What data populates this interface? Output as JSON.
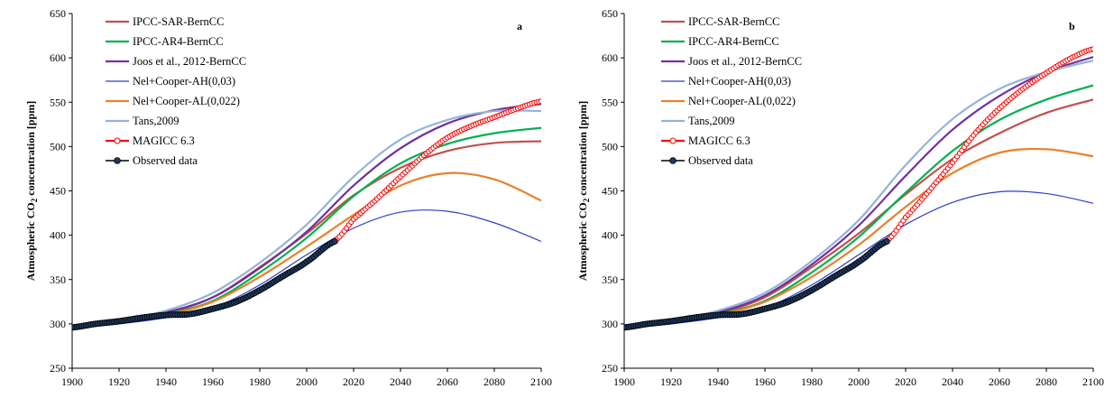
{
  "chart_data": [
    {
      "type": "line",
      "panel_label": "a",
      "ylabel": "Atmospheric CO",
      "ylabel_sub": "2",
      "ylabel_rest": " concentration [ppm]",
      "xlim": [
        1900,
        2100
      ],
      "ylim": [
        250,
        650
      ],
      "xticks": [
        "1900",
        "1920",
        "1940",
        "1960",
        "1980",
        "2000",
        "2020",
        "2040",
        "2060",
        "2080",
        "2100"
      ],
      "yticks": [
        "250",
        "300",
        "350",
        "400",
        "450",
        "500",
        "550",
        "600",
        "650"
      ],
      "series": [
        {
          "name": "IPCC-SAR-BernCC",
          "color": "#c0504d",
          "x": [
            1900,
            1920,
            1940,
            1960,
            1980,
            2000,
            2020,
            2040,
            2060,
            2080,
            2100
          ],
          "values": [
            296,
            302,
            312,
            330,
            364,
            402,
            445,
            476,
            495,
            504,
            506
          ]
        },
        {
          "name": "IPCC-AR4-BernCC",
          "color": "#00b050",
          "x": [
            1900,
            1920,
            1940,
            1960,
            1980,
            2000,
            2020,
            2040,
            2060,
            2080,
            2100
          ],
          "values": [
            296,
            302,
            311,
            326,
            358,
            397,
            444,
            481,
            503,
            515,
            521
          ]
        },
        {
          "name": "Joos et al., 2012-BernCC",
          "color": "#7030a0",
          "x": [
            1900,
            1920,
            1940,
            1960,
            1980,
            2000,
            2020,
            2040,
            2060,
            2080,
            2100
          ],
          "values": [
            296,
            303,
            313,
            330,
            363,
            404,
            456,
            498,
            526,
            541,
            548
          ]
        },
        {
          "name": "Nel+Cooper-AH(0,03)",
          "color": "#2e3ec7",
          "x": [
            1900,
            1920,
            1940,
            1960,
            1980,
            2000,
            2020,
            2040,
            2060,
            2080,
            2100
          ],
          "values": [
            295,
            300,
            307,
            318,
            344,
            378,
            408,
            426,
            427,
            414,
            393
          ]
        },
        {
          "name": "Nel+Cooper-AL(0,022)",
          "color": "#e9812a",
          "x": [
            1900,
            1920,
            1940,
            1960,
            1980,
            2000,
            2020,
            2040,
            2060,
            2080,
            2100
          ],
          "values": [
            296,
            302,
            310,
            325,
            353,
            387,
            423,
            456,
            470,
            463,
            439
          ]
        },
        {
          "name": "Tans,2009",
          "color": "#95b3d7",
          "x": [
            1900,
            1920,
            1940,
            1960,
            1980,
            2000,
            2020,
            2040,
            2060,
            2080,
            2100
          ],
          "values": [
            297,
            304,
            315,
            335,
            369,
            412,
            466,
            508,
            530,
            540,
            540
          ]
        },
        {
          "name": "MAGICC 6.3",
          "color": "#ff0000",
          "x": [
            2012,
            2020,
            2030,
            2040,
            2050,
            2060,
            2070,
            2080,
            2090,
            2100
          ],
          "values": [
            394,
            418,
            441,
            466,
            490,
            510,
            523,
            533,
            543,
            551
          ]
        },
        {
          "name": "Observed data",
          "color": "#000000",
          "x": [
            1900,
            1910,
            1920,
            1930,
            1940,
            1950,
            1960,
            1970,
            1980,
            1990,
            2000,
            2012
          ],
          "values": [
            296,
            300,
            303,
            307,
            310,
            311,
            317,
            325,
            338,
            354,
            370,
            393
          ]
        }
      ]
    },
    {
      "type": "line",
      "panel_label": "b",
      "ylabel": "Atmospheric CO",
      "ylabel_sub": "2",
      "ylabel_rest": " concentration [ppm]",
      "xlim": [
        1900,
        2100
      ],
      "ylim": [
        250,
        650
      ],
      "xticks": [
        "1900",
        "1920",
        "1940",
        "1960",
        "1980",
        "2000",
        "2020",
        "2040",
        "2060",
        "2080",
        "2100"
      ],
      "yticks": [
        "250",
        "300",
        "350",
        "400",
        "450",
        "500",
        "550",
        "600",
        "650"
      ],
      "series": [
        {
          "name": "IPCC-SAR-BernCC",
          "color": "#c0504d",
          "x": [
            1900,
            1920,
            1940,
            1960,
            1980,
            2000,
            2020,
            2040,
            2060,
            2080,
            2100
          ],
          "values": [
            296,
            302,
            312,
            330,
            364,
            402,
            446,
            486,
            515,
            538,
            553
          ]
        },
        {
          "name": "IPCC-AR4-BernCC",
          "color": "#00b050",
          "x": [
            1900,
            1920,
            1940,
            1960,
            1980,
            2000,
            2020,
            2040,
            2060,
            2080,
            2100
          ],
          "values": [
            296,
            302,
            311,
            326,
            358,
            398,
            448,
            495,
            530,
            553,
            569
          ]
        },
        {
          "name": "Joos et al., 2012-BernCC",
          "color": "#7030a0",
          "x": [
            1900,
            1920,
            1940,
            1960,
            1980,
            2000,
            2020,
            2040,
            2060,
            2080,
            2100
          ],
          "values": [
            296,
            303,
            313,
            332,
            367,
            411,
            467,
            519,
            557,
            584,
            601
          ]
        },
        {
          "name": "Nel+Cooper-AH(0,03)",
          "color": "#2e3ec7",
          "x": [
            1900,
            1920,
            1940,
            1960,
            1980,
            2000,
            2020,
            2040,
            2060,
            2080,
            2100
          ],
          "values": [
            295,
            300,
            307,
            318,
            344,
            378,
            412,
            437,
            449,
            447,
            436
          ]
        },
        {
          "name": "Nel+Cooper-AL(0,022)",
          "color": "#e9812a",
          "x": [
            1900,
            1920,
            1940,
            1960,
            1980,
            2000,
            2020,
            2040,
            2060,
            2080,
            2100
          ],
          "values": [
            296,
            302,
            310,
            325,
            353,
            389,
            432,
            470,
            493,
            497,
            489
          ]
        },
        {
          "name": "Tans,2009",
          "color": "#95b3d7",
          "x": [
            1900,
            1920,
            1940,
            1960,
            1980,
            2000,
            2020,
            2040,
            2060,
            2080,
            2100
          ],
          "values": [
            297,
            304,
            315,
            335,
            371,
            417,
            479,
            531,
            565,
            584,
            597
          ]
        },
        {
          "name": "MAGICC 6.3",
          "color": "#ff0000",
          "x": [
            2012,
            2020,
            2030,
            2040,
            2050,
            2060,
            2070,
            2080,
            2090,
            2100
          ],
          "values": [
            394,
            420,
            450,
            482,
            516,
            543,
            565,
            583,
            599,
            610
          ]
        },
        {
          "name": "Observed data",
          "color": "#000000",
          "x": [
            1900,
            1910,
            1920,
            1930,
            1940,
            1950,
            1960,
            1970,
            1980,
            1990,
            2000,
            2012
          ],
          "values": [
            296,
            300,
            303,
            307,
            310,
            311,
            317,
            325,
            338,
            354,
            370,
            393
          ]
        }
      ]
    }
  ]
}
